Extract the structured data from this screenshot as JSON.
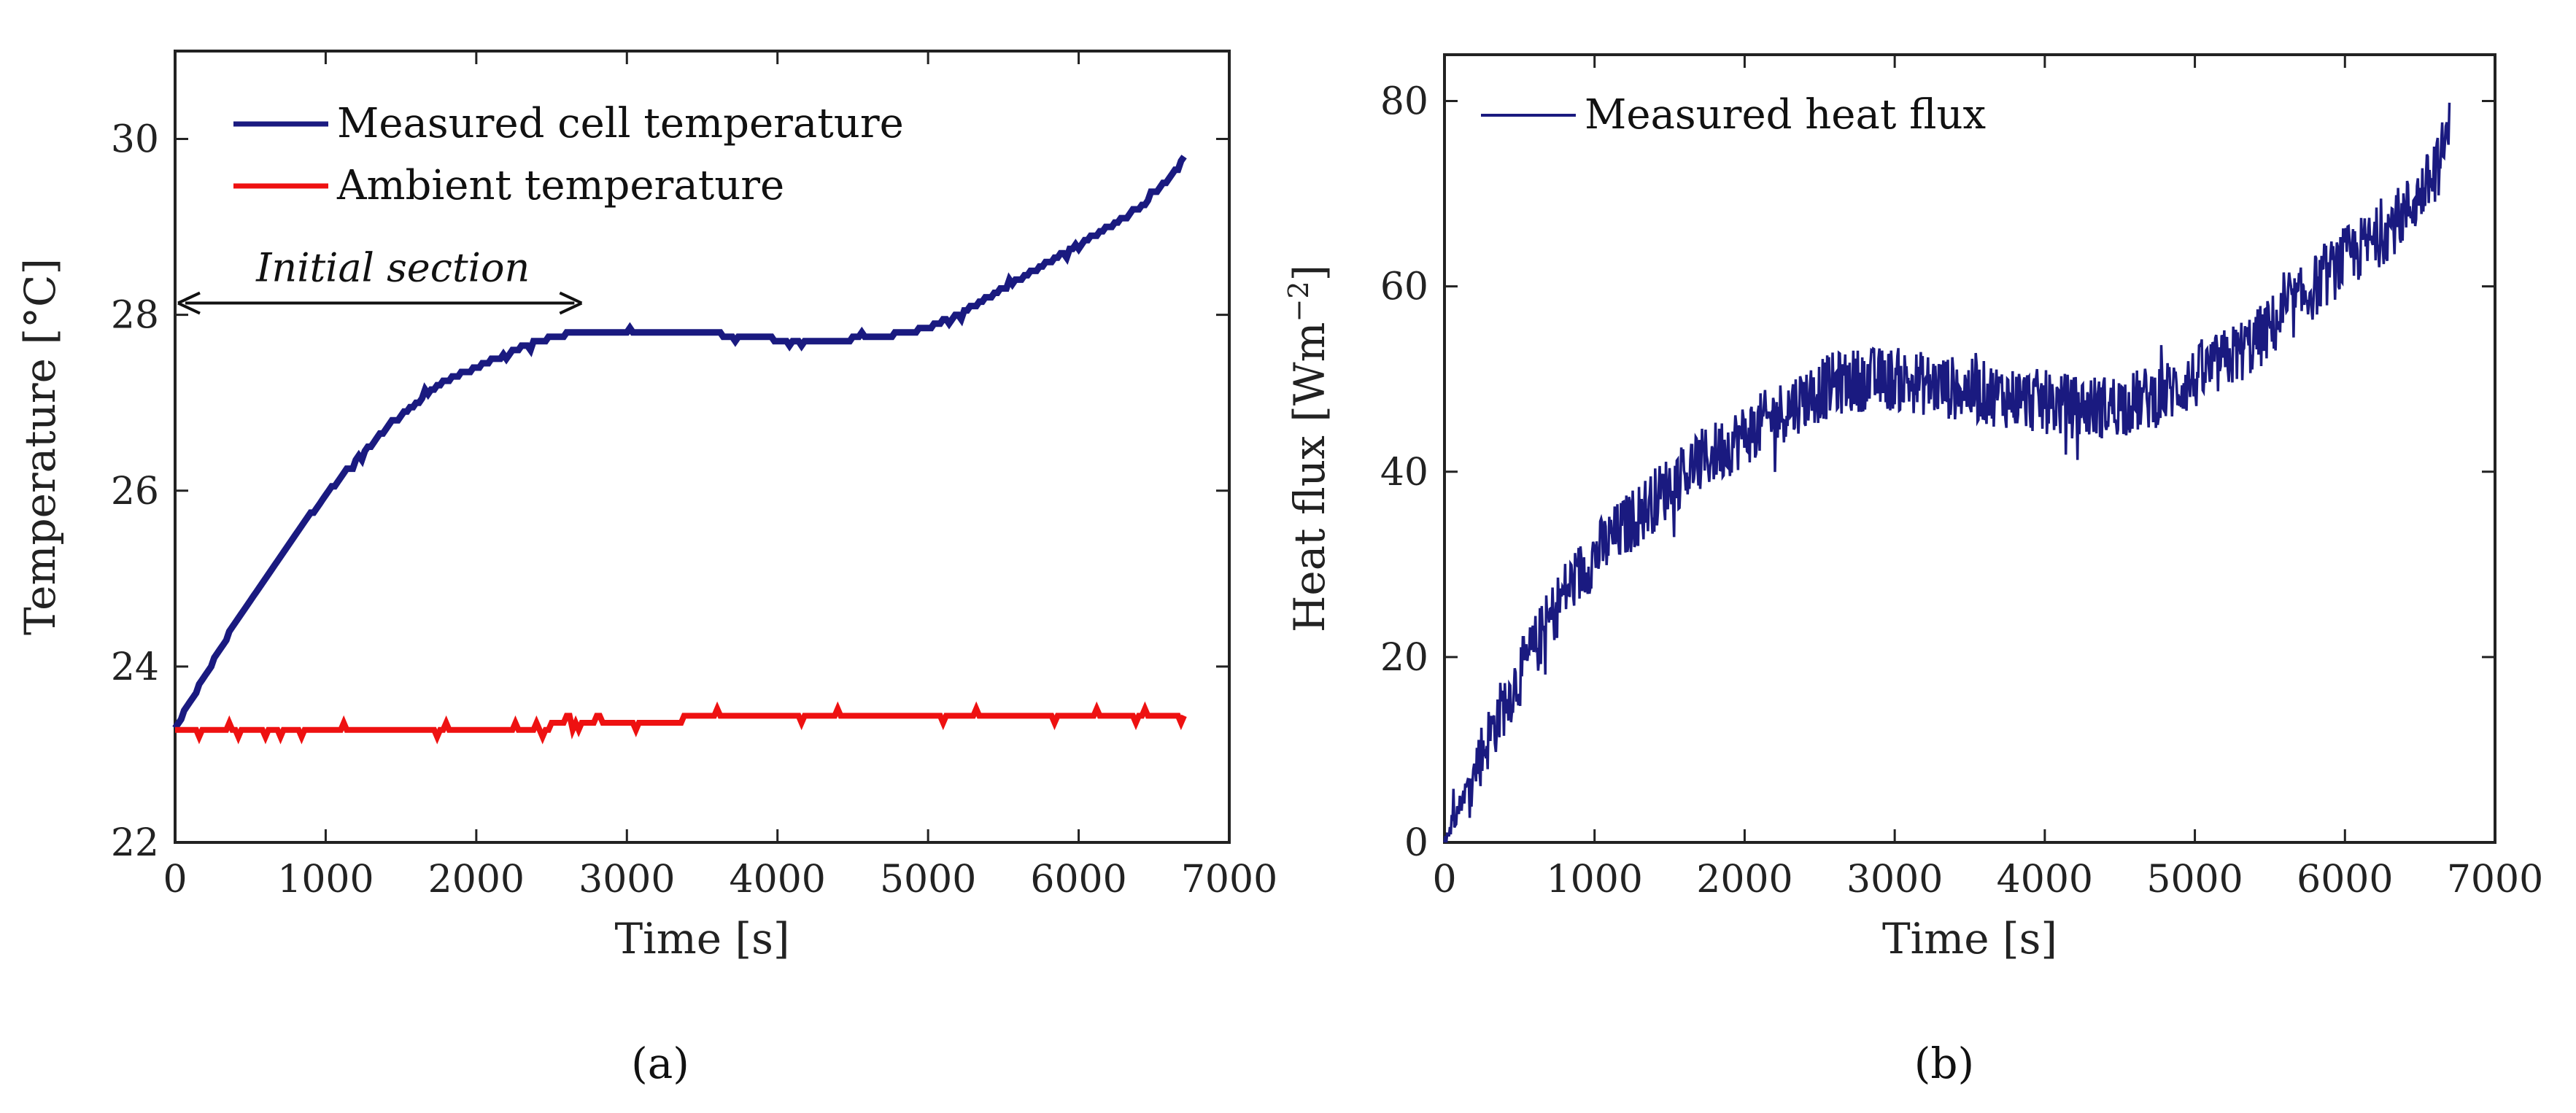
{
  "chart_data": [
    {
      "type": "line",
      "panel_label": "(a)",
      "xlabel": "Time [s]",
      "ylabel": "Temperature [°C]",
      "xlim": [
        0,
        7000
      ],
      "ylim": [
        22,
        31
      ],
      "xticks": [
        0,
        1000,
        2000,
        3000,
        4000,
        5000,
        6000,
        7000
      ],
      "yticks": [
        22,
        24,
        26,
        28,
        30
      ],
      "legend_position": "top-left",
      "series": [
        {
          "name": "Measured cell temperature",
          "color": "#1a1a80",
          "x": [
            0,
            200,
            400,
            600,
            800,
            1000,
            1200,
            1400,
            1600,
            1800,
            2000,
            2200,
            2400,
            2600,
            2800,
            3000,
            3200,
            3400,
            3600,
            3800,
            4000,
            4200,
            4400,
            4600,
            4800,
            5000,
            5200,
            5400,
            5600,
            5800,
            6000,
            6200,
            6400,
            6600,
            6700
          ],
          "values": [
            23.3,
            23.9,
            24.5,
            25.0,
            25.5,
            25.95,
            26.35,
            26.7,
            27.0,
            27.25,
            27.4,
            27.55,
            27.7,
            27.78,
            27.82,
            27.82,
            27.82,
            27.8,
            27.78,
            27.75,
            27.72,
            27.72,
            27.72,
            27.73,
            27.78,
            27.85,
            28.0,
            28.2,
            28.4,
            28.6,
            28.8,
            29.0,
            29.2,
            29.55,
            29.8
          ]
        },
        {
          "name": "Ambient temperature",
          "color": "#ee1111",
          "x": [
            0,
            500,
            1000,
            1500,
            2000,
            2500,
            2700,
            2800,
            3300,
            3400,
            4000,
            5000,
            6000,
            6400,
            6600,
            6700
          ],
          "values": [
            23.3,
            23.3,
            23.3,
            23.3,
            23.3,
            23.32,
            23.38,
            23.4,
            23.35,
            23.42,
            23.42,
            23.42,
            23.42,
            23.45,
            23.45,
            23.42
          ]
        }
      ],
      "annotation": {
        "text": "Initial section",
        "x_start": 0,
        "x_end": 2700,
        "y": 28.2
      }
    },
    {
      "type": "line",
      "panel_label": "(b)",
      "xlabel": "Time [s]",
      "ylabel": "Heat flux [Wm",
      "ylabel_sup": "−2",
      "ylabel_end": "]",
      "xlim": [
        0,
        7000
      ],
      "ylim": [
        0,
        85
      ],
      "xticks": [
        0,
        1000,
        2000,
        3000,
        4000,
        5000,
        6000,
        7000
      ],
      "yticks": [
        0,
        20,
        40,
        60,
        80
      ],
      "legend_position": "top-left",
      "series": [
        {
          "name": "Measured heat flux",
          "color": "#1a1a80",
          "x": [
            0,
            200,
            400,
            600,
            800,
            1000,
            1200,
            1400,
            1600,
            1800,
            2000,
            2200,
            2400,
            2600,
            2800,
            3000,
            3200,
            3400,
            3600,
            3800,
            4000,
            4200,
            4400,
            4600,
            4800,
            5000,
            5200,
            5400,
            5600,
            5800,
            6000,
            6200,
            6400,
            6600,
            6700
          ],
          "values": [
            0,
            8,
            15,
            21,
            27,
            31,
            34,
            37,
            40,
            42,
            44,
            46,
            48,
            49.5,
            50,
            50,
            49.5,
            49,
            48.5,
            48,
            47.5,
            47,
            47,
            47.5,
            48.5,
            50,
            52,
            54,
            57,
            60,
            63,
            65,
            68,
            72,
            77
          ]
        }
      ]
    }
  ]
}
